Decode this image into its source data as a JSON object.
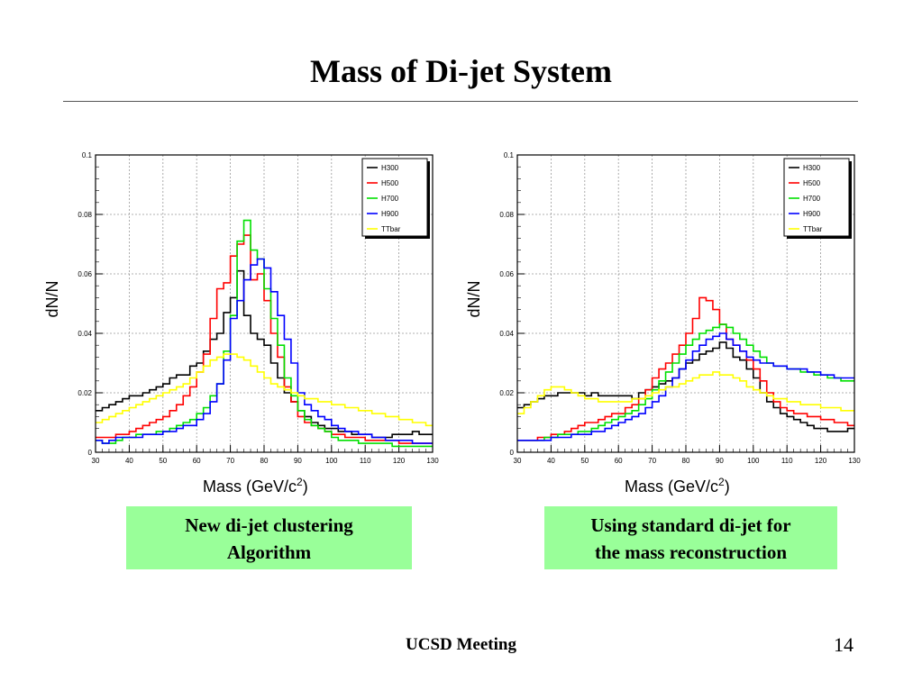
{
  "slide": {
    "title": "Mass of Di-jet System",
    "footer": "UCSD Meeting",
    "page_number": "14",
    "captions": {
      "left": [
        "New di-jet clustering",
        "Algorithm"
      ],
      "right": [
        "Using standard di-jet for",
        "the mass reconstruction"
      ]
    },
    "colors": {
      "caption_bg": "#99ff99"
    }
  },
  "chart_data": [
    {
      "type": "line",
      "xlabel": "Mass (GeV/c",
      "xlabel_sup": "2",
      "xlabel_close": ")",
      "ylabel": "dN/N",
      "xlim": [
        30,
        130
      ],
      "ylim": [
        0,
        0.1
      ],
      "xticks": [
        30,
        40,
        50,
        60,
        70,
        80,
        90,
        100,
        110,
        120,
        130
      ],
      "yticks": [
        0,
        0.02,
        0.04,
        0.06,
        0.08,
        0.1
      ],
      "grid": true,
      "legend_position": "top-right",
      "bin_width": 2,
      "series": [
        {
          "name": "H300",
          "color": "#000000",
          "values": [
            0.014,
            0.015,
            0.016,
            0.017,
            0.018,
            0.019,
            0.019,
            0.02,
            0.021,
            0.022,
            0.023,
            0.025,
            0.026,
            0.026,
            0.029,
            0.03,
            0.034,
            0.038,
            0.04,
            0.047,
            0.052,
            0.061,
            0.046,
            0.04,
            0.038,
            0.036,
            0.03,
            0.025,
            0.02,
            0.017,
            0.014,
            0.012,
            0.01,
            0.009,
            0.008,
            0.008,
            0.007,
            0.007,
            0.006,
            0.006,
            0.006,
            0.005,
            0.005,
            0.005,
            0.006,
            0.006,
            0.006,
            0.007,
            0.006,
            0.006
          ]
        },
        {
          "name": "H500",
          "color": "#ff0000",
          "values": [
            0.005,
            0.005,
            0.005,
            0.006,
            0.006,
            0.007,
            0.008,
            0.009,
            0.01,
            0.011,
            0.012,
            0.014,
            0.016,
            0.019,
            0.022,
            0.027,
            0.033,
            0.045,
            0.055,
            0.057,
            0.066,
            0.07,
            0.073,
            0.058,
            0.06,
            0.051,
            0.04,
            0.032,
            0.022,
            0.017,
            0.012,
            0.01,
            0.009,
            0.008,
            0.007,
            0.006,
            0.006,
            0.005,
            0.005,
            0.005,
            0.004,
            0.004,
            0.004,
            0.004,
            0.004,
            0.003,
            0.003,
            0.003,
            0.003,
            0.003
          ]
        },
        {
          "name": "H700",
          "color": "#00e000",
          "values": [
            0.004,
            0.003,
            0.003,
            0.004,
            0.005,
            0.005,
            0.006,
            0.006,
            0.006,
            0.007,
            0.007,
            0.008,
            0.009,
            0.01,
            0.011,
            0.013,
            0.015,
            0.019,
            0.023,
            0.034,
            0.046,
            0.071,
            0.078,
            0.068,
            0.065,
            0.055,
            0.045,
            0.036,
            0.025,
            0.019,
            0.014,
            0.011,
            0.009,
            0.008,
            0.007,
            0.005,
            0.004,
            0.004,
            0.004,
            0.003,
            0.003,
            0.003,
            0.003,
            0.003,
            0.002,
            0.002,
            0.002,
            0.002,
            0.002,
            0.002
          ]
        },
        {
          "name": "H900",
          "color": "#0000ff",
          "values": [
            0.004,
            0.003,
            0.004,
            0.005,
            0.005,
            0.005,
            0.005,
            0.006,
            0.006,
            0.006,
            0.007,
            0.007,
            0.008,
            0.009,
            0.009,
            0.011,
            0.013,
            0.017,
            0.023,
            0.031,
            0.045,
            0.051,
            0.058,
            0.063,
            0.065,
            0.062,
            0.054,
            0.046,
            0.038,
            0.03,
            0.02,
            0.016,
            0.014,
            0.012,
            0.011,
            0.009,
            0.008,
            0.007,
            0.007,
            0.006,
            0.006,
            0.005,
            0.005,
            0.004,
            0.004,
            0.004,
            0.004,
            0.003,
            0.003,
            0.003
          ]
        },
        {
          "name": "TTbar",
          "color": "#ffff00",
          "values": [
            0.01,
            0.011,
            0.012,
            0.013,
            0.014,
            0.015,
            0.016,
            0.017,
            0.018,
            0.019,
            0.02,
            0.021,
            0.022,
            0.023,
            0.025,
            0.027,
            0.029,
            0.031,
            0.032,
            0.033,
            0.033,
            0.032,
            0.031,
            0.029,
            0.027,
            0.025,
            0.023,
            0.022,
            0.021,
            0.02,
            0.019,
            0.018,
            0.018,
            0.017,
            0.017,
            0.016,
            0.016,
            0.015,
            0.015,
            0.014,
            0.014,
            0.013,
            0.013,
            0.012,
            0.012,
            0.011,
            0.011,
            0.01,
            0.01,
            0.009
          ]
        }
      ]
    },
    {
      "type": "line",
      "xlabel": "Mass (GeV/c",
      "xlabel_sup": "2",
      "xlabel_close": ")",
      "ylabel": "dN/N",
      "xlim": [
        30,
        130
      ],
      "ylim": [
        0,
        0.1
      ],
      "xticks": [
        30,
        40,
        50,
        60,
        70,
        80,
        90,
        100,
        110,
        120,
        130
      ],
      "yticks": [
        0,
        0.02,
        0.04,
        0.06,
        0.08,
        0.1
      ],
      "grid": true,
      "legend_position": "top-right",
      "bin_width": 2,
      "series": [
        {
          "name": "H300",
          "color": "#000000",
          "values": [
            0.015,
            0.016,
            0.017,
            0.018,
            0.019,
            0.019,
            0.02,
            0.02,
            0.02,
            0.02,
            0.019,
            0.02,
            0.019,
            0.019,
            0.019,
            0.019,
            0.019,
            0.018,
            0.02,
            0.021,
            0.022,
            0.023,
            0.024,
            0.025,
            0.028,
            0.03,
            0.031,
            0.033,
            0.034,
            0.035,
            0.037,
            0.035,
            0.032,
            0.031,
            0.028,
            0.025,
            0.02,
            0.017,
            0.015,
            0.013,
            0.012,
            0.011,
            0.01,
            0.009,
            0.008,
            0.008,
            0.007,
            0.007,
            0.007,
            0.008
          ]
        },
        {
          "name": "H500",
          "color": "#ff0000",
          "values": [
            0.004,
            0.004,
            0.004,
            0.005,
            0.005,
            0.006,
            0.006,
            0.007,
            0.008,
            0.009,
            0.01,
            0.01,
            0.011,
            0.012,
            0.013,
            0.013,
            0.015,
            0.016,
            0.018,
            0.021,
            0.025,
            0.028,
            0.03,
            0.033,
            0.036,
            0.04,
            0.045,
            0.052,
            0.051,
            0.048,
            0.043,
            0.038,
            0.036,
            0.034,
            0.031,
            0.028,
            0.024,
            0.02,
            0.017,
            0.015,
            0.014,
            0.013,
            0.013,
            0.012,
            0.012,
            0.011,
            0.011,
            0.01,
            0.01,
            0.009
          ]
        },
        {
          "name": "H700",
          "color": "#00e000",
          "values": [
            0.004,
            0.004,
            0.004,
            0.004,
            0.005,
            0.005,
            0.006,
            0.006,
            0.006,
            0.007,
            0.007,
            0.008,
            0.009,
            0.01,
            0.011,
            0.012,
            0.013,
            0.014,
            0.016,
            0.018,
            0.021,
            0.024,
            0.027,
            0.03,
            0.033,
            0.036,
            0.038,
            0.04,
            0.041,
            0.042,
            0.043,
            0.042,
            0.04,
            0.038,
            0.036,
            0.034,
            0.032,
            0.03,
            0.029,
            0.029,
            0.028,
            0.028,
            0.027,
            0.027,
            0.026,
            0.026,
            0.025,
            0.025,
            0.024,
            0.024
          ]
        },
        {
          "name": "H900",
          "color": "#0000ff",
          "values": [
            0.004,
            0.004,
            0.004,
            0.004,
            0.004,
            0.005,
            0.005,
            0.005,
            0.006,
            0.006,
            0.006,
            0.007,
            0.007,
            0.008,
            0.009,
            0.01,
            0.011,
            0.012,
            0.013,
            0.015,
            0.017,
            0.019,
            0.022,
            0.025,
            0.028,
            0.031,
            0.034,
            0.036,
            0.038,
            0.039,
            0.04,
            0.038,
            0.036,
            0.034,
            0.032,
            0.031,
            0.03,
            0.03,
            0.029,
            0.029,
            0.028,
            0.028,
            0.028,
            0.027,
            0.027,
            0.026,
            0.026,
            0.025,
            0.025,
            0.025
          ]
        },
        {
          "name": "TTbar",
          "color": "#ffff00",
          "values": [
            0.013,
            0.015,
            0.017,
            0.019,
            0.021,
            0.022,
            0.022,
            0.021,
            0.02,
            0.019,
            0.018,
            0.018,
            0.017,
            0.017,
            0.017,
            0.017,
            0.017,
            0.018,
            0.018,
            0.019,
            0.02,
            0.021,
            0.022,
            0.022,
            0.023,
            0.024,
            0.025,
            0.026,
            0.026,
            0.027,
            0.026,
            0.026,
            0.025,
            0.024,
            0.022,
            0.021,
            0.02,
            0.019,
            0.018,
            0.018,
            0.017,
            0.017,
            0.016,
            0.016,
            0.016,
            0.015,
            0.015,
            0.015,
            0.014,
            0.014
          ]
        }
      ]
    }
  ]
}
